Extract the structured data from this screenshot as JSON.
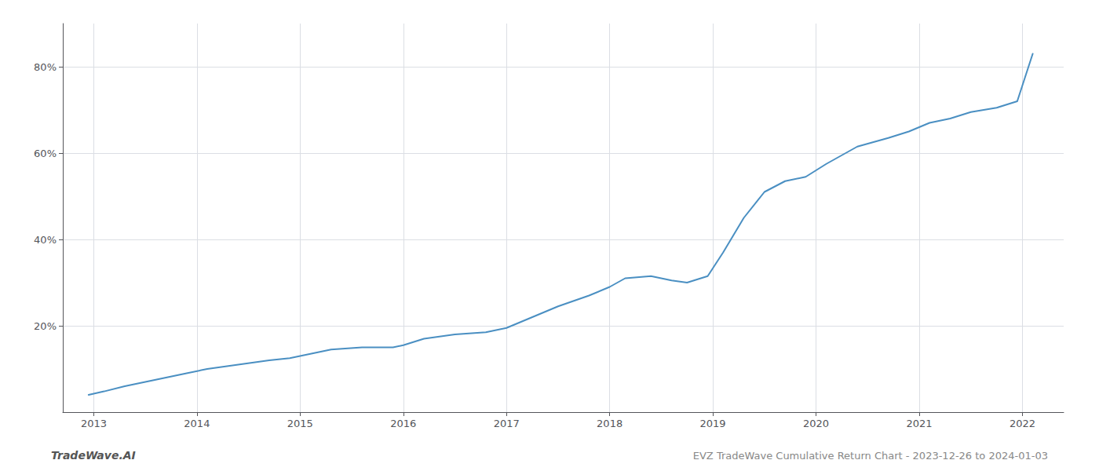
{
  "chart_data": {
    "type": "line",
    "title": "EVZ TradeWave Cumulative Return Chart - 2023-12-26 to 2024-01-03",
    "annotations": [
      "TradeWave.AI"
    ],
    "x": [
      2012.95,
      2013.1,
      2013.3,
      2013.6,
      2013.9,
      2014.1,
      2014.4,
      2014.7,
      2014.9,
      2015.1,
      2015.3,
      2015.6,
      2015.9,
      2016.0,
      2016.2,
      2016.5,
      2016.8,
      2017.0,
      2017.2,
      2017.5,
      2017.8,
      2018.0,
      2018.15,
      2018.4,
      2018.6,
      2018.75,
      2018.95,
      2019.1,
      2019.3,
      2019.5,
      2019.7,
      2019.9,
      2020.1,
      2020.4,
      2020.7,
      2020.9,
      2021.1,
      2021.3,
      2021.5,
      2021.75,
      2021.95,
      2022.1
    ],
    "values": [
      4.0,
      4.8,
      6.0,
      7.5,
      9.0,
      10.0,
      11.0,
      12.0,
      12.5,
      13.5,
      14.5,
      15.0,
      15.0,
      15.5,
      17.0,
      18.0,
      18.5,
      19.5,
      21.5,
      24.5,
      27.0,
      29.0,
      31.0,
      31.5,
      30.5,
      30.0,
      31.5,
      37.0,
      45.0,
      51.0,
      53.5,
      54.5,
      57.5,
      61.5,
      63.5,
      65.0,
      67.0,
      68.0,
      69.5,
      70.5,
      72.0,
      83.0
    ],
    "color": "#4a8fc2",
    "xlim": [
      2012.7,
      2022.4
    ],
    "ylim": [
      0,
      90
    ],
    "xticks": [
      2013,
      2014,
      2015,
      2016,
      2017,
      2018,
      2019,
      2020,
      2021,
      2022
    ],
    "yticks": [
      {
        "value": 20,
        "label": "20%"
      },
      {
        "value": 40,
        "label": "40%"
      },
      {
        "value": 60,
        "label": "60%"
      },
      {
        "value": 80,
        "label": "80%"
      }
    ],
    "grid": true
  }
}
